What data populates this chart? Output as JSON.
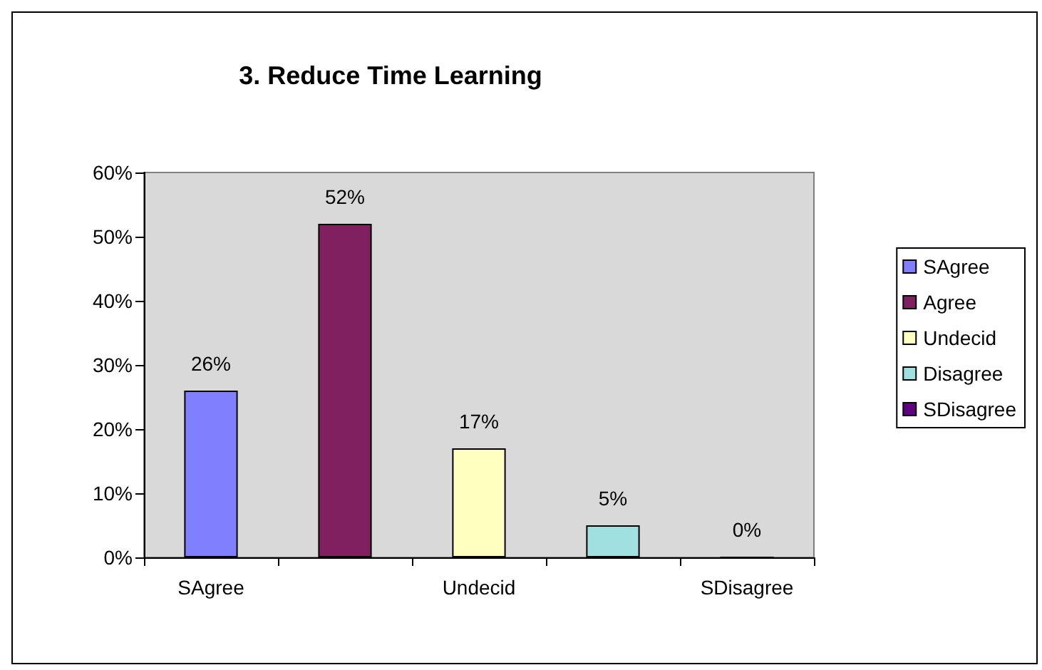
{
  "chart_data": {
    "type": "bar",
    "title": "3. Reduce Time Learning",
    "categories": [
      "SAgree",
      null,
      "Undecid",
      null,
      "SDisagree"
    ],
    "series": [
      {
        "name": "SAgree",
        "color": "#8080ff",
        "values": [
          26,
          null,
          null,
          null,
          null
        ],
        "value_labels": [
          "26%",
          null,
          null,
          null,
          null
        ]
      },
      {
        "name": "Agree",
        "color": "#802060",
        "values": [
          null,
          52,
          null,
          null,
          null
        ],
        "value_labels": [
          null,
          "52%",
          null,
          null,
          null
        ]
      },
      {
        "name": "Undecid",
        "color": "#ffffc0",
        "values": [
          null,
          null,
          17,
          null,
          null
        ],
        "value_labels": [
          null,
          null,
          "17%",
          null,
          null
        ]
      },
      {
        "name": "Disagree",
        "color": "#a0e0e0",
        "values": [
          null,
          null,
          null,
          5,
          null
        ],
        "value_labels": [
          null,
          null,
          null,
          "5%",
          null
        ]
      },
      {
        "name": "SDisagree",
        "color": "#600080",
        "values": [
          null,
          null,
          null,
          null,
          0
        ],
        "value_labels": [
          null,
          null,
          null,
          null,
          "0%"
        ]
      }
    ],
    "ylim": [
      0,
      60
    ],
    "yticks": [
      {
        "value": 0,
        "label": "0%"
      },
      {
        "value": 10,
        "label": "10%"
      },
      {
        "value": 20,
        "label": "20%"
      },
      {
        "value": 30,
        "label": "30%"
      },
      {
        "value": 40,
        "label": "40%"
      },
      {
        "value": 50,
        "label": "50%"
      },
      {
        "value": 60,
        "label": "60%"
      }
    ],
    "grid": false,
    "legend": "right"
  }
}
